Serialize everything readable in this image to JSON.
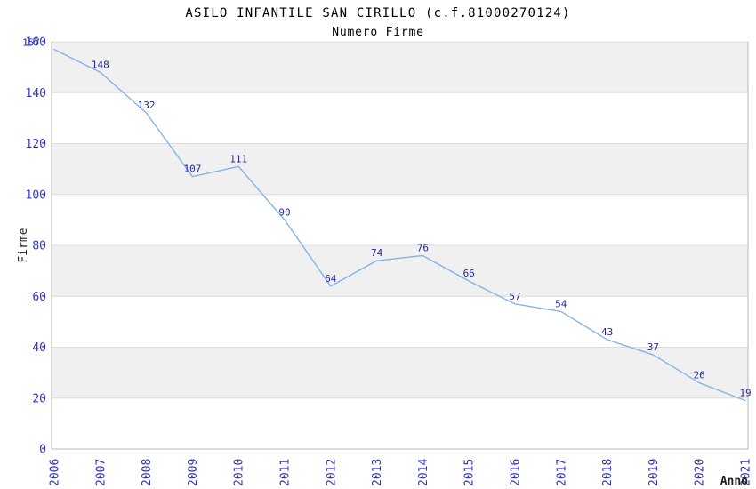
{
  "chart_data": {
    "type": "line",
    "title": "ASILO INFANTILE SAN CIRILLO (c.f.81000270124)",
    "subtitle": "Numero Firme",
    "xlabel": "Anno",
    "ylabel": "Firme",
    "x": [
      "2006",
      "2007",
      "2008",
      "2009",
      "2010",
      "2011",
      "2012",
      "2013",
      "2014",
      "2015",
      "2016",
      "2017",
      "2018",
      "2019",
      "2020",
      "2021"
    ],
    "series": [
      {
        "name": "Numero Firme",
        "values": [
          157,
          148,
          132,
          107,
          111,
          90,
          64,
          74,
          76,
          66,
          57,
          54,
          43,
          37,
          26,
          19
        ]
      }
    ],
    "point_labels": true,
    "ylim": [
      0,
      160
    ],
    "ytick_step": 20,
    "yticks": [
      0,
      20,
      40,
      60,
      80,
      100,
      120,
      140,
      160
    ],
    "grid": "horizontal alternating shaded bands every 20 units",
    "legend": "none",
    "colors": {
      "line": "#85B4E9",
      "point_label": "#28289B",
      "axis_tick_label": "#3333CC",
      "band_shade": "#F0F0F0",
      "band_alt": "#FFFFFF",
      "gridline": "#DCDCDC",
      "axis_border": "#B9B9B9",
      "title": "#1A1A1A",
      "subtitle": "#3F3F3F",
      "axis_title": "#1E1E1E"
    }
  }
}
